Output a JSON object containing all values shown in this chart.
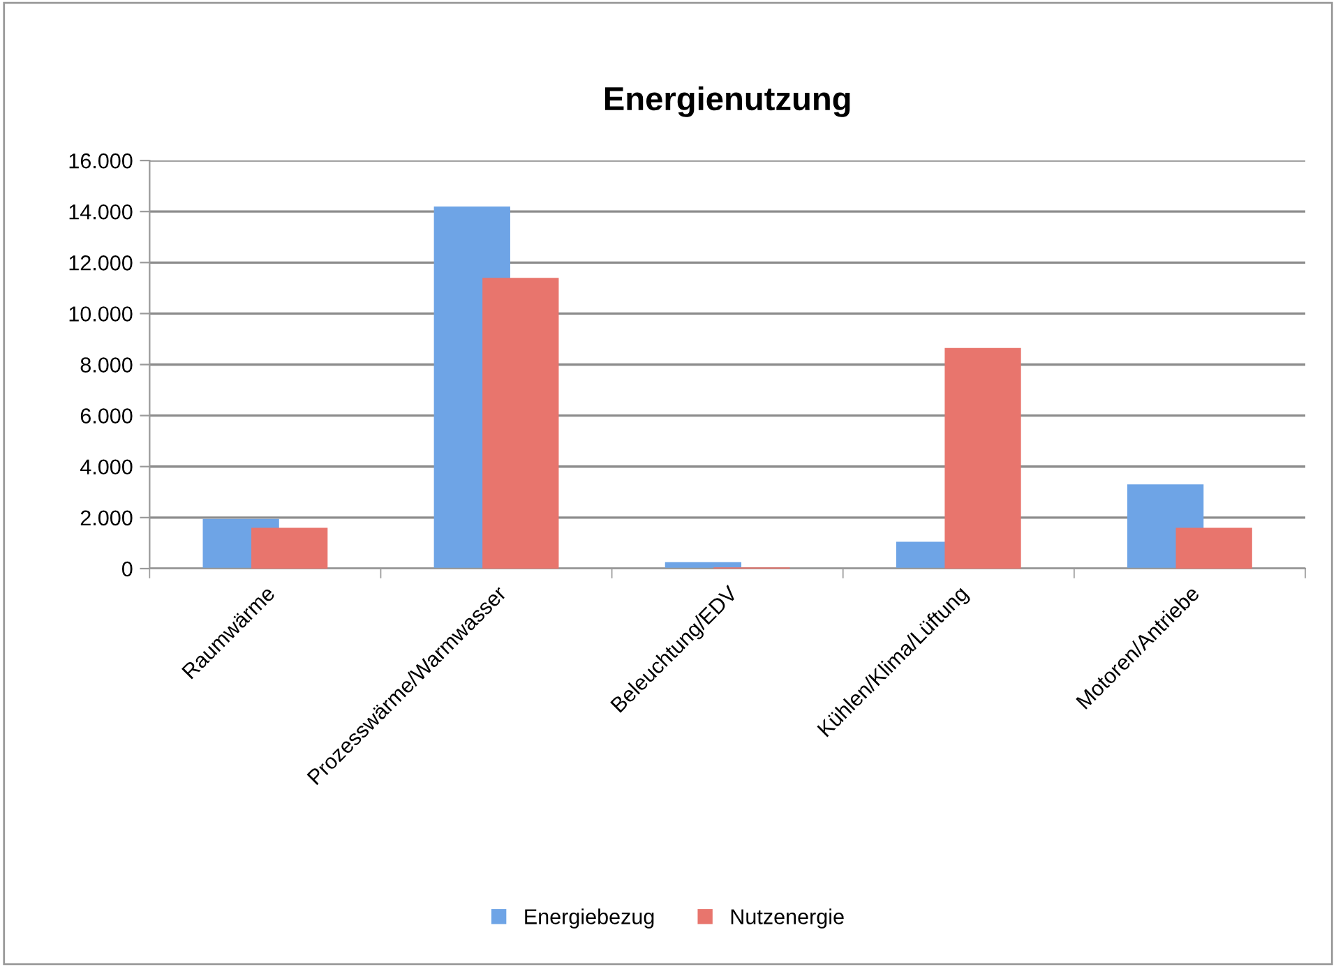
{
  "chart_data": {
    "type": "bar",
    "title": "Energienutzung",
    "categories": [
      "Raumwärme",
      "Prozesswärme/Warmwasser",
      "Beleuchtung/EDV",
      "Kühlen/Klima/Lüftung",
      "Motoren/Antriebe"
    ],
    "series": [
      {
        "name": "Energiebezug",
        "color": "#6ea4e6",
        "values": [
          1950,
          14200,
          250,
          1050,
          3300
        ]
      },
      {
        "name": "Nutzenergie",
        "color": "#e8756d",
        "values": [
          1600,
          11400,
          50,
          8650,
          1600
        ]
      }
    ],
    "ylim": [
      0,
      16000
    ],
    "yticks": [
      0,
      {
        "value": 2000,
        "label": "2.000"
      },
      {
        "value": 4000,
        "label": "4.000"
      },
      {
        "value": 6000,
        "label": "6.000"
      },
      {
        "value": 8000,
        "label": "8.000"
      },
      {
        "value": 10000,
        "label": "10.000"
      },
      {
        "value": 12000,
        "label": "12.000"
      },
      {
        "value": 14000,
        "label": "14.000"
      },
      {
        "value": 16000,
        "label": "16.000"
      }
    ],
    "grid": "y",
    "legend": "bottom"
  }
}
